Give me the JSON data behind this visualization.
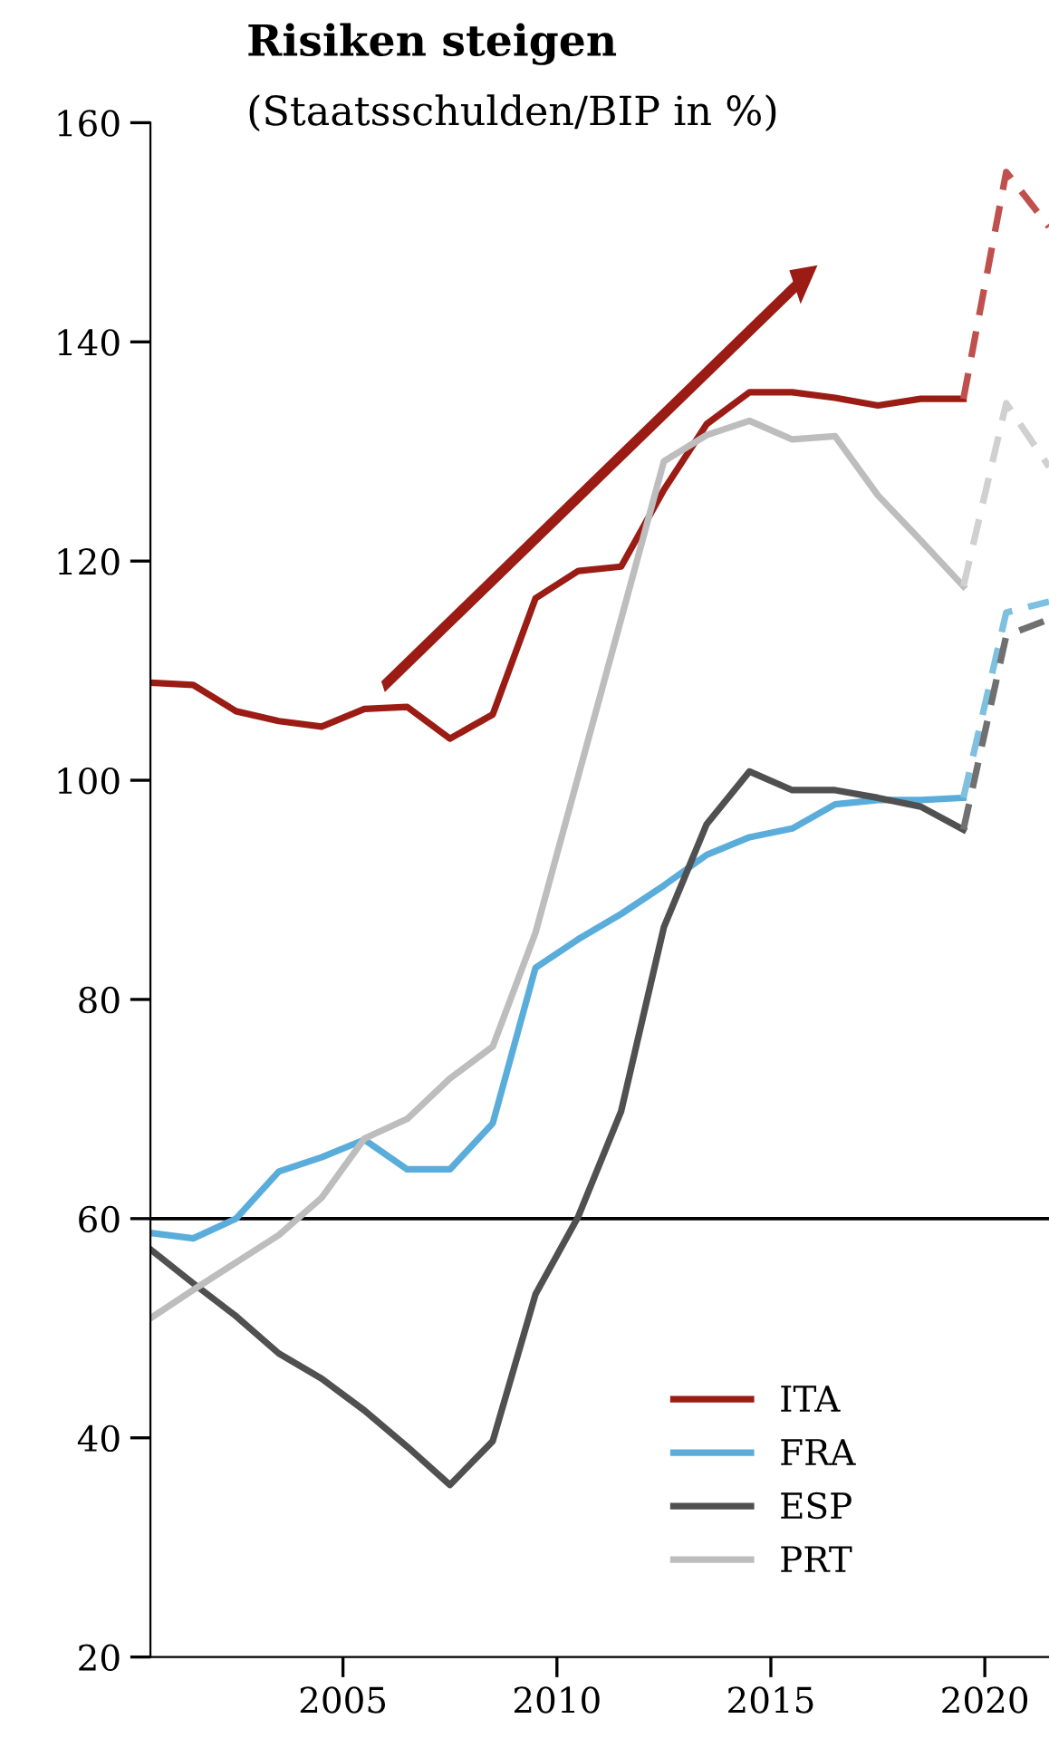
{
  "chart_data": {
    "type": "line",
    "title": "Risiken steigen",
    "subtitle": "(Staatsschulden/BIP in %)",
    "x": [
      2000.5,
      2001.5,
      2002.5,
      2003.5,
      2004.5,
      2005.5,
      2006.5,
      2007.5,
      2008.5,
      2009.5,
      2010.5,
      2011.5,
      2012.5,
      2013.5,
      2014.5,
      2015.5,
      2016.5,
      2017.5,
      2018.5,
      2019.5
    ],
    "series": [
      {
        "name": "ITA",
        "color": "#9b1c14",
        "values": [
          108.9,
          108.7,
          106.3,
          105.4,
          104.9,
          106.5,
          106.7,
          103.8,
          106.0,
          116.6,
          119.1,
          119.5,
          126.5,
          132.5,
          135.4,
          135.4,
          134.9,
          134.2,
          134.8,
          134.8
        ]
      },
      {
        "name": "FRA",
        "color": "#5aaddb",
        "values": [
          58.7,
          58.2,
          60.0,
          64.3,
          65.6,
          67.2,
          64.5,
          64.5,
          68.7,
          82.9,
          85.5,
          87.8,
          90.4,
          93.2,
          94.8,
          95.6,
          97.8,
          98.2,
          98.2,
          98.4
        ]
      },
      {
        "name": "ESP",
        "color": "#505050",
        "values": [
          57.2,
          54.1,
          51.1,
          47.7,
          45.4,
          42.5,
          39.2,
          35.7,
          39.7,
          53.1,
          60.2,
          69.8,
          86.6,
          96.0,
          100.8,
          99.1,
          99.1,
          98.4,
          97.6,
          95.5
        ]
      },
      {
        "name": "PRT",
        "color": "#bdbdbd",
        "values": [
          50.9,
          53.5,
          56.0,
          58.5,
          61.9,
          67.3,
          69.1,
          72.8,
          75.7,
          86.1,
          100.4,
          114.7,
          129.1,
          131.5,
          132.8,
          131.1,
          131.4,
          126.0,
          121.9,
          117.7
        ]
      },
      {
        "color": "#c0504d",
        "line_style": "dashed",
        "x": [
          2019.5,
          2020.5,
          2021.5
        ],
        "values": [
          134.8,
          155.5,
          150.5
        ]
      },
      {
        "color": "#7ec0e0",
        "line_style": "dashed",
        "x": [
          2019.5,
          2020.5,
          2021.5
        ],
        "values": [
          98.4,
          115.3,
          116.3
        ]
      },
      {
        "color": "#707070",
        "line_style": "dashed",
        "x": [
          2019.5,
          2020.5,
          2021.5
        ],
        "values": [
          95.5,
          113.2,
          114.7
        ]
      },
      {
        "color": "#d0d0d0",
        "line_style": "dashed",
        "x": [
          2019.5,
          2020.5,
          2021.5
        ],
        "values": [
          117.7,
          134.4,
          128.6
        ]
      }
    ],
    "xlim": [
      2000.5,
      2021.5
    ],
    "xticks": [
      2005,
      2010,
      2015,
      2020
    ],
    "ylim": [
      20,
      160
    ],
    "yticks": [
      20,
      40,
      60,
      80,
      100,
      120,
      140,
      160
    ],
    "ref_lines": [
      {
        "axis": "y",
        "value": 60,
        "color": "#000000"
      }
    ],
    "line_style": "solid",
    "grid": false,
    "legend": "bottom right"
  }
}
